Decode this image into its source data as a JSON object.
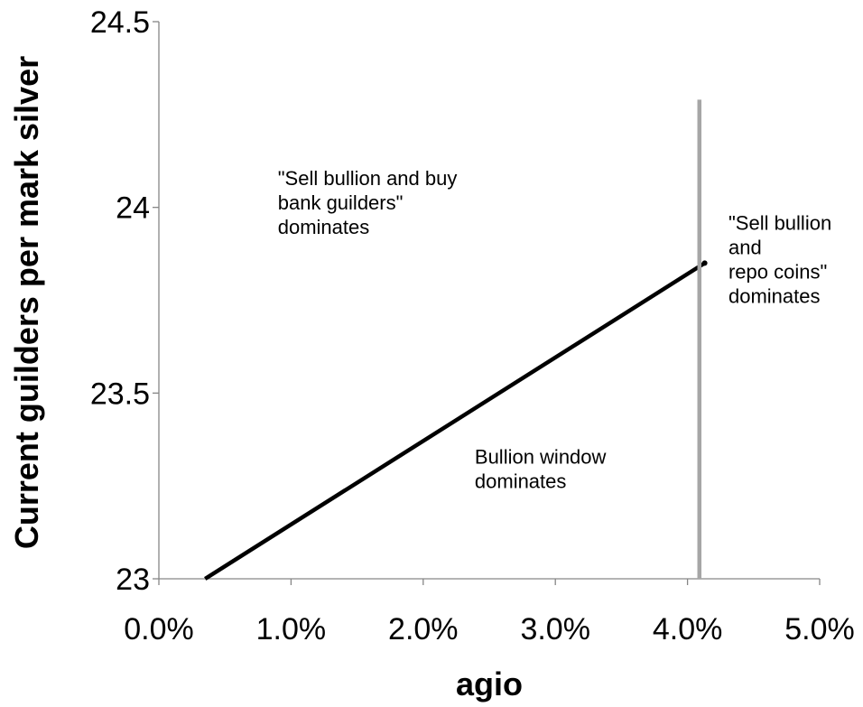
{
  "chart_data": {
    "type": "line",
    "title": "",
    "xlabel": "agio",
    "ylabel": "Current guilders per mark silver",
    "xlim": [
      0,
      0.05
    ],
    "ylim": [
      23,
      24.5
    ],
    "x_ticks": [
      0,
      0.01,
      0.02,
      0.03,
      0.04,
      0.05
    ],
    "x_tick_labels": [
      "0.0%",
      "1.0%",
      "2.0%",
      "3.0%",
      "4.0%",
      "5.0%"
    ],
    "y_ticks": [
      23,
      23.5,
      24,
      24.5
    ],
    "y_tick_labels": [
      "23",
      "23.5",
      "24",
      "24.5"
    ],
    "grid": false,
    "legend": "none",
    "series": [
      {
        "color": "#000000",
        "x": [
          0.0035,
          0.0413
        ],
        "y": [
          23.0,
          23.85
        ]
      },
      {
        "color": "#a6a6a6",
        "x": [
          0.0409,
          0.0409
        ],
        "y": [
          23.0,
          24.29
        ]
      }
    ],
    "annotations": [
      {
        "lines": [
          "\"Sell bullion and buy",
          "bank guilders\"",
          "dominates"
        ],
        "x": 0.009,
        "y": 24.06
      },
      {
        "lines": [
          "\"Sell bullion",
          "and",
          "repo coins\"",
          "dominates"
        ],
        "x": 0.0431,
        "y": 23.94
      },
      {
        "lines": [
          "Bullion window",
          "dominates"
        ],
        "x": 0.0239,
        "y": 23.31
      }
    ]
  }
}
